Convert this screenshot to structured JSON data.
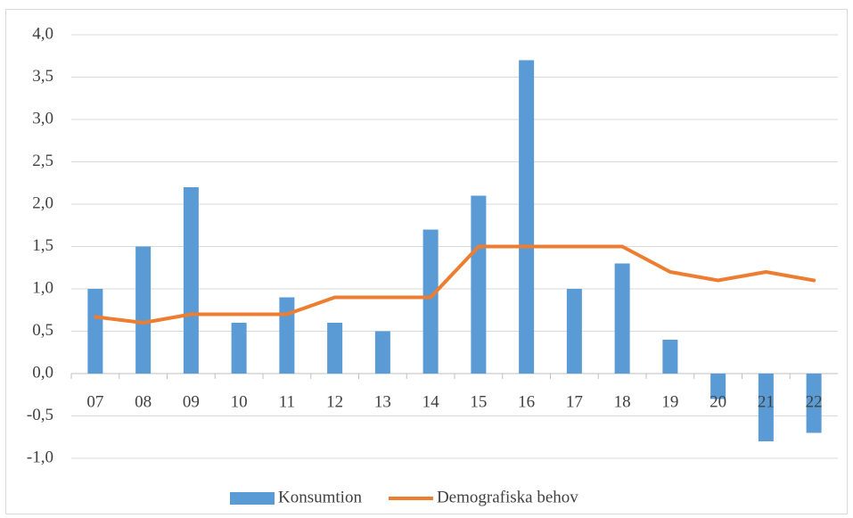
{
  "chart_data": {
    "type": "bar",
    "categories": [
      "07",
      "08",
      "09",
      "10",
      "11",
      "12",
      "13",
      "14",
      "15",
      "16",
      "17",
      "18",
      "19",
      "20",
      "21",
      "22"
    ],
    "series": [
      {
        "name": "Konsumtion",
        "color": "#5b9bd5",
        "type": "bar",
        "values": [
          1.0,
          1.5,
          2.2,
          0.6,
          0.9,
          0.6,
          0.5,
          1.7,
          2.1,
          3.7,
          1.0,
          1.3,
          0.4,
          -0.3,
          -0.8,
          -0.7
        ]
      },
      {
        "name": "Demografiska behov",
        "color": "#ed7d31",
        "type": "line",
        "values": [
          0.67,
          0.6,
          0.7,
          0.7,
          0.7,
          0.9,
          0.9,
          0.9,
          1.5,
          1.5,
          1.5,
          1.5,
          1.2,
          1.1,
          1.2,
          1.1
        ]
      }
    ],
    "ylim": [
      -1.0,
      4.0
    ],
    "yticks": [
      {
        "value": -1.0,
        "label": "-1,0"
      },
      {
        "value": -0.5,
        "label": "-0,5"
      },
      {
        "value": 0,
        "label": "0,0"
      },
      {
        "value": 0.5,
        "label": "0,5"
      },
      {
        "value": 1.0,
        "label": "1,0"
      },
      {
        "value": 1.5,
        "label": "1,5"
      },
      {
        "value": 2.0,
        "label": "2,0"
      },
      {
        "value": 2.5,
        "label": "2,5"
      },
      {
        "value": 3.0,
        "label": "3,0"
      },
      {
        "value": 3.5,
        "label": "3,5"
      },
      {
        "value": 4.0,
        "label": "4,0"
      }
    ],
    "grid": true,
    "legend": "bottom"
  }
}
